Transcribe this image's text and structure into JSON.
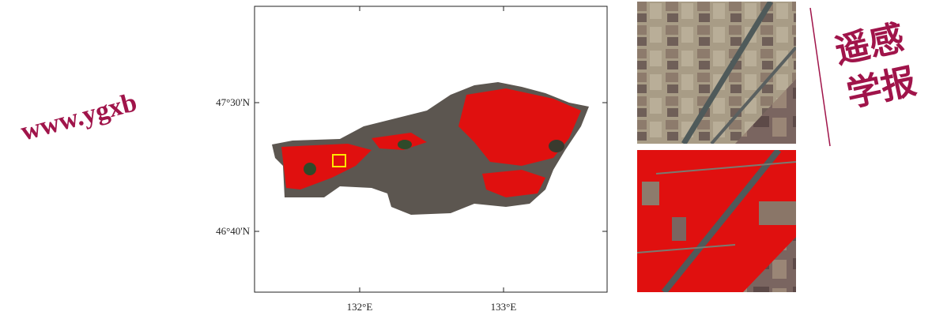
{
  "map": {
    "y_tick_labels": [
      "47°30'N",
      "46°40'N"
    ],
    "x_tick_labels": [
      "132°E",
      "133°E"
    ]
  },
  "watermark": {
    "url": "www.ygxb",
    "journal": [
      "遥感",
      "学报"
    ]
  }
}
